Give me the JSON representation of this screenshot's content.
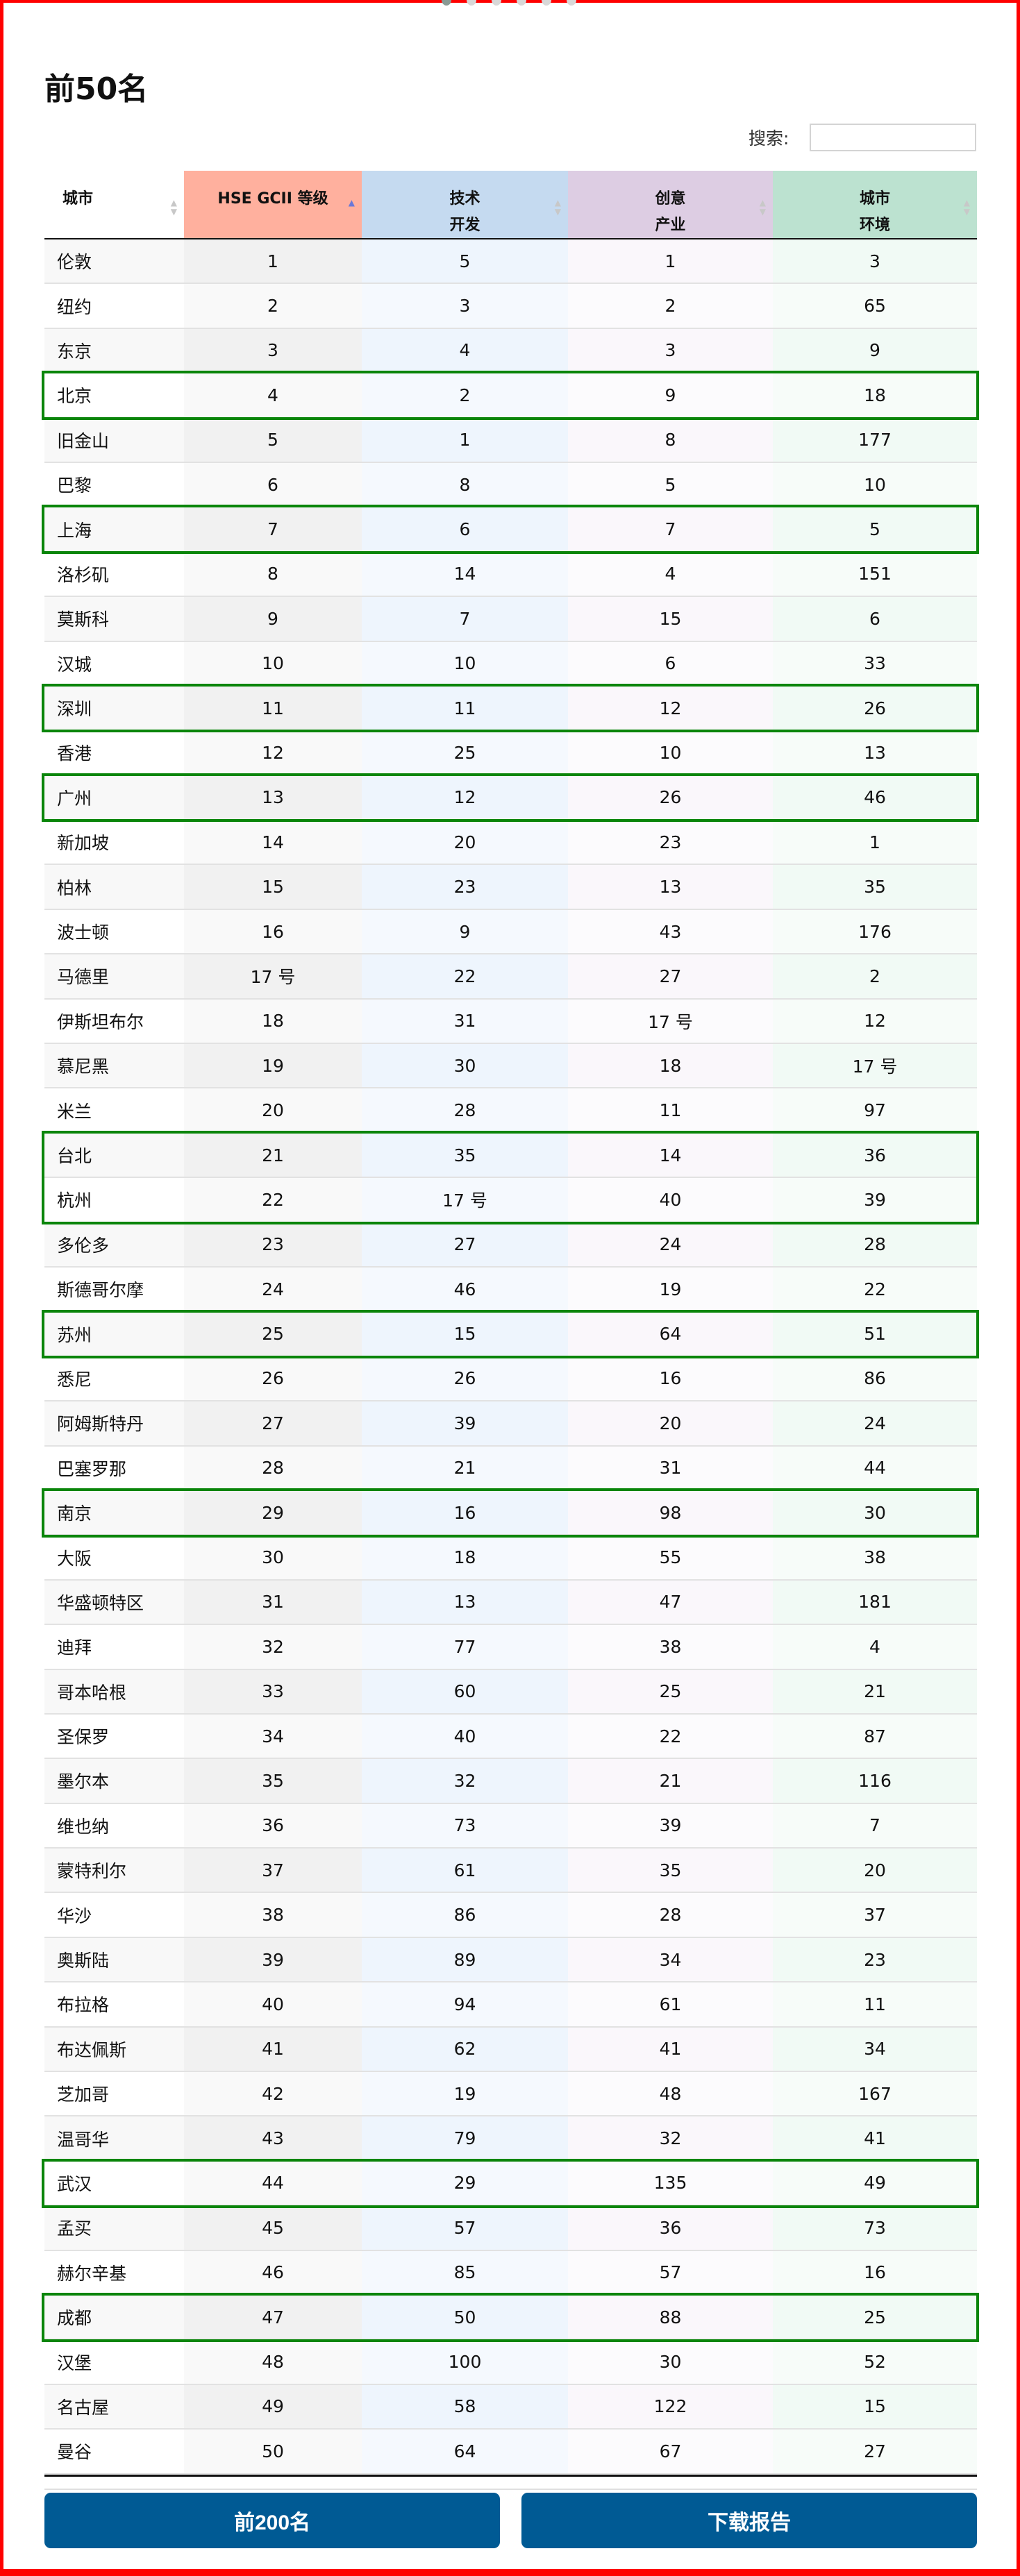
{
  "title": "前50名",
  "search": {
    "label": "搜索:",
    "value": "",
    "placeholder": ""
  },
  "pager": {
    "count": 6,
    "active": 0
  },
  "columns": [
    {
      "label_lines": [
        "城市"
      ],
      "color": "#ffffff",
      "sorted": false
    },
    {
      "label_lines": [
        "HSE GCII 等级"
      ],
      "color": "#ffb09e",
      "sorted": true,
      "sort_direction": "asc"
    },
    {
      "label_lines": [
        "技术",
        "开发"
      ],
      "color": "#c5daf0",
      "sorted": false
    },
    {
      "label_lines": [
        "创意",
        "产业"
      ],
      "color": "#ddcde3",
      "sorted": false
    },
    {
      "label_lines": [
        "城市",
        "环境"
      ],
      "color": "#bce2d0",
      "sorted": false
    }
  ],
  "rows": [
    {
      "city": "伦敦",
      "hse": "1",
      "tech": "5",
      "creative": "1",
      "env": "3"
    },
    {
      "city": "纽约",
      "hse": "2",
      "tech": "3",
      "creative": "2",
      "env": "65"
    },
    {
      "city": "东京",
      "hse": "3",
      "tech": "4",
      "creative": "3",
      "env": "9"
    },
    {
      "city": "北京",
      "hse": "4",
      "tech": "2",
      "creative": "9",
      "env": "18",
      "highlight": true
    },
    {
      "city": "旧金山",
      "hse": "5",
      "tech": "1",
      "creative": "8",
      "env": "177"
    },
    {
      "city": "巴黎",
      "hse": "6",
      "tech": "8",
      "creative": "5",
      "env": "10"
    },
    {
      "city": "上海",
      "hse": "7",
      "tech": "6",
      "creative": "7",
      "env": "5",
      "highlight": true
    },
    {
      "city": "洛杉矶",
      "hse": "8",
      "tech": "14",
      "creative": "4",
      "env": "151"
    },
    {
      "city": "莫斯科",
      "hse": "9",
      "tech": "7",
      "creative": "15",
      "env": "6"
    },
    {
      "city": "汉城",
      "hse": "10",
      "tech": "10",
      "creative": "6",
      "env": "33"
    },
    {
      "city": "深圳",
      "hse": "11",
      "tech": "11",
      "creative": "12",
      "env": "26",
      "highlight": true
    },
    {
      "city": "香港",
      "hse": "12",
      "tech": "25",
      "creative": "10",
      "env": "13"
    },
    {
      "city": "广州",
      "hse": "13",
      "tech": "12",
      "creative": "26",
      "env": "46",
      "highlight": true
    },
    {
      "city": "新加坡",
      "hse": "14",
      "tech": "20",
      "creative": "23",
      "env": "1"
    },
    {
      "city": "柏林",
      "hse": "15",
      "tech": "23",
      "creative": "13",
      "env": "35"
    },
    {
      "city": "波士顿",
      "hse": "16",
      "tech": "9",
      "creative": "43",
      "env": "176"
    },
    {
      "city": "马德里",
      "hse": "17 号",
      "tech": "22",
      "creative": "27",
      "env": "2"
    },
    {
      "city": "伊斯坦布尔",
      "hse": "18",
      "tech": "31",
      "creative": "17 号",
      "env": "12"
    },
    {
      "city": "慕尼黑",
      "hse": "19",
      "tech": "30",
      "creative": "18",
      "env": "17 号"
    },
    {
      "city": "米兰",
      "hse": "20",
      "tech": "28",
      "creative": "11",
      "env": "97"
    },
    {
      "city": "台北",
      "hse": "21",
      "tech": "35",
      "creative": "14",
      "env": "36",
      "highlight": true
    },
    {
      "city": "杭州",
      "hse": "22",
      "tech": "17 号",
      "creative": "40",
      "env": "39",
      "highlight": true
    },
    {
      "city": "多伦多",
      "hse": "23",
      "tech": "27",
      "creative": "24",
      "env": "28"
    },
    {
      "city": "斯德哥尔摩",
      "hse": "24",
      "tech": "46",
      "creative": "19",
      "env": "22"
    },
    {
      "city": "苏州",
      "hse": "25",
      "tech": "15",
      "creative": "64",
      "env": "51",
      "highlight": true
    },
    {
      "city": "悉尼",
      "hse": "26",
      "tech": "26",
      "creative": "16",
      "env": "86"
    },
    {
      "city": "阿姆斯特丹",
      "hse": "27",
      "tech": "39",
      "creative": "20",
      "env": "24"
    },
    {
      "city": "巴塞罗那",
      "hse": "28",
      "tech": "21",
      "creative": "31",
      "env": "44"
    },
    {
      "city": "南京",
      "hse": "29",
      "tech": "16",
      "creative": "98",
      "env": "30",
      "highlight": true
    },
    {
      "city": "大阪",
      "hse": "30",
      "tech": "18",
      "creative": "55",
      "env": "38"
    },
    {
      "city": "华盛顿特区",
      "hse": "31",
      "tech": "13",
      "creative": "47",
      "env": "181"
    },
    {
      "city": "迪拜",
      "hse": "32",
      "tech": "77",
      "creative": "38",
      "env": "4"
    },
    {
      "city": "哥本哈根",
      "hse": "33",
      "tech": "60",
      "creative": "25",
      "env": "21"
    },
    {
      "city": "圣保罗",
      "hse": "34",
      "tech": "40",
      "creative": "22",
      "env": "87"
    },
    {
      "city": "墨尔本",
      "hse": "35",
      "tech": "32",
      "creative": "21",
      "env": "116"
    },
    {
      "city": "维也纳",
      "hse": "36",
      "tech": "73",
      "creative": "39",
      "env": "7"
    },
    {
      "city": "蒙特利尔",
      "hse": "37",
      "tech": "61",
      "creative": "35",
      "env": "20"
    },
    {
      "city": "华沙",
      "hse": "38",
      "tech": "86",
      "creative": "28",
      "env": "37"
    },
    {
      "city": "奥斯陆",
      "hse": "39",
      "tech": "89",
      "creative": "34",
      "env": "23"
    },
    {
      "city": "布拉格",
      "hse": "40",
      "tech": "94",
      "creative": "61",
      "env": "11"
    },
    {
      "city": "布达佩斯",
      "hse": "41",
      "tech": "62",
      "creative": "41",
      "env": "34"
    },
    {
      "city": "芝加哥",
      "hse": "42",
      "tech": "19",
      "creative": "48",
      "env": "167"
    },
    {
      "city": "温哥华",
      "hse": "43",
      "tech": "79",
      "creative": "32",
      "env": "41"
    },
    {
      "city": "武汉",
      "hse": "44",
      "tech": "29",
      "creative": "135",
      "env": "49",
      "highlight": true
    },
    {
      "city": "孟买",
      "hse": "45",
      "tech": "57",
      "creative": "36",
      "env": "73"
    },
    {
      "city": "赫尔辛基",
      "hse": "46",
      "tech": "85",
      "creative": "57",
      "env": "16"
    },
    {
      "city": "成都",
      "hse": "47",
      "tech": "50",
      "creative": "88",
      "env": "25",
      "highlight": true
    },
    {
      "city": "汉堡",
      "hse": "48",
      "tech": "100",
      "creative": "30",
      "env": "52"
    },
    {
      "city": "名古屋",
      "hse": "49",
      "tech": "58",
      "creative": "122",
      "env": "15"
    },
    {
      "city": "曼谷",
      "hse": "50",
      "tech": "64",
      "creative": "67",
      "env": "27"
    }
  ],
  "highlight_color": "#0a850a",
  "buttons": {
    "top200": "前200名",
    "download": "下载报告",
    "color": "#005a94"
  }
}
